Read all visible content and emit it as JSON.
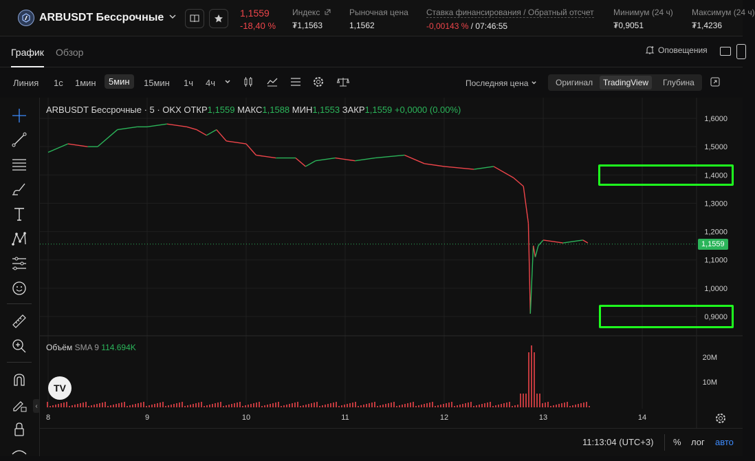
{
  "header": {
    "pair": "ARBUSDT Бессрочные",
    "price": "1,1559",
    "change_pct": "-18,40 %",
    "stats": [
      {
        "label": "Индекс",
        "value": "₮1,1563",
        "link": true
      },
      {
        "label": "Рыночная цена",
        "value": "1,1562"
      },
      {
        "label": "Ставка финансирования / Обратный отсчет",
        "value_neg": "-0,00143 %",
        "value_rest": " / 07:46:55"
      },
      {
        "label": "Минимум (24 ч)",
        "value": "₮0,9051"
      },
      {
        "label": "Максимум (24 ч)",
        "value": "₮1,4236"
      }
    ]
  },
  "tabs": {
    "chart": "График",
    "overview": "Обзор",
    "alerts": "Оповещения"
  },
  "toolbar": {
    "timeframes": [
      "Линия",
      "1с",
      "1мин",
      "5мин",
      "15мин",
      "1ч",
      "4ч"
    ],
    "selected_timeframe": "5мин",
    "price_type": "Последняя цена",
    "views": [
      "Оригинал",
      "TradingView",
      "Глубина"
    ],
    "selected_view": "TradingView"
  },
  "chart": {
    "legend_title": "ARBUSDT Бессрочные · 5 · OKX",
    "open_label": "ОТКР",
    "open": "1,1559",
    "high_label": "МАКС",
    "high": "1,1588",
    "low_label": "МИН",
    "low": "1,1553",
    "close_label": "ЗАКР",
    "close": "1,1559",
    "change": "+0,0000 (0.00%)",
    "current_price_tag": "1,1559",
    "volume_label": "Объём",
    "sma_label": "SMA 9",
    "volume_value": "114.694K",
    "highlighted_levels": [
      "1,4000",
      "0,9000"
    ]
  },
  "chart_data": {
    "type": "line",
    "title": "ARBUSDT Бессрочные · 5 · OKX",
    "x_ticks": [
      "8",
      "9",
      "10",
      "11",
      "12",
      "13",
      "14"
    ],
    "y_ticks": [
      "1,6000",
      "1,5000",
      "1,4000",
      "1,3000",
      "1,2000",
      "1,1000",
      "1,0000",
      "0,9000"
    ],
    "ylim": [
      0.87,
      1.63
    ],
    "volume_ticks": [
      "20M",
      "10M"
    ],
    "series": [
      {
        "name": "",
        "x": [
          8.0,
          8.2,
          8.4,
          8.5,
          8.7,
          8.9,
          9.0,
          9.2,
          9.4,
          9.5,
          9.6,
          9.7,
          9.8,
          10.0,
          10.1,
          10.3,
          10.5,
          10.6,
          10.7,
          10.9,
          11.1,
          11.3,
          11.6,
          11.8,
          12.0,
          12.3,
          12.5,
          12.7,
          12.8,
          12.85,
          12.87,
          12.9,
          12.92,
          12.95,
          13.0,
          13.2,
          13.4,
          13.45
        ],
        "y": [
          1.48,
          1.51,
          1.5,
          1.5,
          1.56,
          1.57,
          1.57,
          1.58,
          1.57,
          1.56,
          1.54,
          1.56,
          1.52,
          1.51,
          1.47,
          1.46,
          1.46,
          1.43,
          1.45,
          1.46,
          1.45,
          1.46,
          1.47,
          1.44,
          1.43,
          1.42,
          1.43,
          1.39,
          1.36,
          1.23,
          0.91,
          1.15,
          1.11,
          1.15,
          1.17,
          1.16,
          1.17,
          1.16
        ]
      }
    ]
  }
}
